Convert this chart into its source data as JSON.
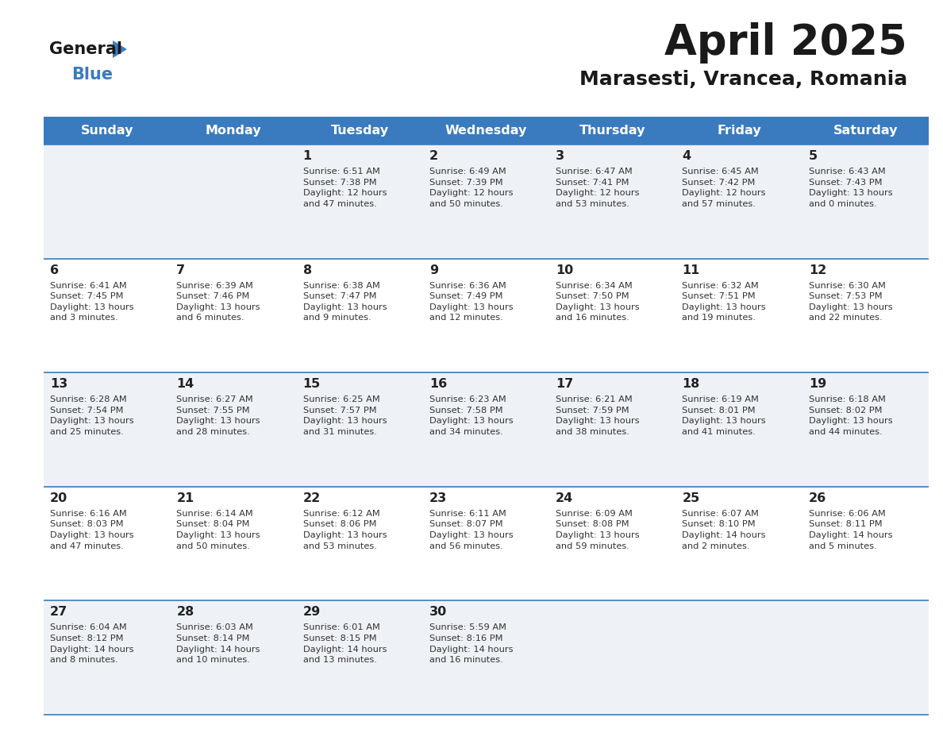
{
  "title": "April 2025",
  "subtitle": "Marasesti, Vrancea, Romania",
  "header_bg": "#3a7bbf",
  "header_text_color": "#ffffff",
  "days_of_week": [
    "Sunday",
    "Monday",
    "Tuesday",
    "Wednesday",
    "Thursday",
    "Friday",
    "Saturday"
  ],
  "bg_color": "#ffffff",
  "row_bg_even": "#eef2f7",
  "row_bg_odd": "#ffffff",
  "cell_border_color": "#3a7bbf",
  "day_number_color": "#222222",
  "text_color": "#333333",
  "logo_general_color": "#1a1a1a",
  "logo_blue_color": "#3a7bbf",
  "logo_triangle_color": "#3a7bbf",
  "title_color": "#1a1a1a",
  "subtitle_color": "#1a1a1a",
  "calendar": [
    [
      {
        "day": null,
        "text": ""
      },
      {
        "day": null,
        "text": ""
      },
      {
        "day": 1,
        "text": "Sunrise: 6:51 AM\nSunset: 7:38 PM\nDaylight: 12 hours\nand 47 minutes."
      },
      {
        "day": 2,
        "text": "Sunrise: 6:49 AM\nSunset: 7:39 PM\nDaylight: 12 hours\nand 50 minutes."
      },
      {
        "day": 3,
        "text": "Sunrise: 6:47 AM\nSunset: 7:41 PM\nDaylight: 12 hours\nand 53 minutes."
      },
      {
        "day": 4,
        "text": "Sunrise: 6:45 AM\nSunset: 7:42 PM\nDaylight: 12 hours\nand 57 minutes."
      },
      {
        "day": 5,
        "text": "Sunrise: 6:43 AM\nSunset: 7:43 PM\nDaylight: 13 hours\nand 0 minutes."
      }
    ],
    [
      {
        "day": 6,
        "text": "Sunrise: 6:41 AM\nSunset: 7:45 PM\nDaylight: 13 hours\nand 3 minutes."
      },
      {
        "day": 7,
        "text": "Sunrise: 6:39 AM\nSunset: 7:46 PM\nDaylight: 13 hours\nand 6 minutes."
      },
      {
        "day": 8,
        "text": "Sunrise: 6:38 AM\nSunset: 7:47 PM\nDaylight: 13 hours\nand 9 minutes."
      },
      {
        "day": 9,
        "text": "Sunrise: 6:36 AM\nSunset: 7:49 PM\nDaylight: 13 hours\nand 12 minutes."
      },
      {
        "day": 10,
        "text": "Sunrise: 6:34 AM\nSunset: 7:50 PM\nDaylight: 13 hours\nand 16 minutes."
      },
      {
        "day": 11,
        "text": "Sunrise: 6:32 AM\nSunset: 7:51 PM\nDaylight: 13 hours\nand 19 minutes."
      },
      {
        "day": 12,
        "text": "Sunrise: 6:30 AM\nSunset: 7:53 PM\nDaylight: 13 hours\nand 22 minutes."
      }
    ],
    [
      {
        "day": 13,
        "text": "Sunrise: 6:28 AM\nSunset: 7:54 PM\nDaylight: 13 hours\nand 25 minutes."
      },
      {
        "day": 14,
        "text": "Sunrise: 6:27 AM\nSunset: 7:55 PM\nDaylight: 13 hours\nand 28 minutes."
      },
      {
        "day": 15,
        "text": "Sunrise: 6:25 AM\nSunset: 7:57 PM\nDaylight: 13 hours\nand 31 minutes."
      },
      {
        "day": 16,
        "text": "Sunrise: 6:23 AM\nSunset: 7:58 PM\nDaylight: 13 hours\nand 34 minutes."
      },
      {
        "day": 17,
        "text": "Sunrise: 6:21 AM\nSunset: 7:59 PM\nDaylight: 13 hours\nand 38 minutes."
      },
      {
        "day": 18,
        "text": "Sunrise: 6:19 AM\nSunset: 8:01 PM\nDaylight: 13 hours\nand 41 minutes."
      },
      {
        "day": 19,
        "text": "Sunrise: 6:18 AM\nSunset: 8:02 PM\nDaylight: 13 hours\nand 44 minutes."
      }
    ],
    [
      {
        "day": 20,
        "text": "Sunrise: 6:16 AM\nSunset: 8:03 PM\nDaylight: 13 hours\nand 47 minutes."
      },
      {
        "day": 21,
        "text": "Sunrise: 6:14 AM\nSunset: 8:04 PM\nDaylight: 13 hours\nand 50 minutes."
      },
      {
        "day": 22,
        "text": "Sunrise: 6:12 AM\nSunset: 8:06 PM\nDaylight: 13 hours\nand 53 minutes."
      },
      {
        "day": 23,
        "text": "Sunrise: 6:11 AM\nSunset: 8:07 PM\nDaylight: 13 hours\nand 56 minutes."
      },
      {
        "day": 24,
        "text": "Sunrise: 6:09 AM\nSunset: 8:08 PM\nDaylight: 13 hours\nand 59 minutes."
      },
      {
        "day": 25,
        "text": "Sunrise: 6:07 AM\nSunset: 8:10 PM\nDaylight: 14 hours\nand 2 minutes."
      },
      {
        "day": 26,
        "text": "Sunrise: 6:06 AM\nSunset: 8:11 PM\nDaylight: 14 hours\nand 5 minutes."
      }
    ],
    [
      {
        "day": 27,
        "text": "Sunrise: 6:04 AM\nSunset: 8:12 PM\nDaylight: 14 hours\nand 8 minutes."
      },
      {
        "day": 28,
        "text": "Sunrise: 6:03 AM\nSunset: 8:14 PM\nDaylight: 14 hours\nand 10 minutes."
      },
      {
        "day": 29,
        "text": "Sunrise: 6:01 AM\nSunset: 8:15 PM\nDaylight: 14 hours\nand 13 minutes."
      },
      {
        "day": 30,
        "text": "Sunrise: 5:59 AM\nSunset: 8:16 PM\nDaylight: 14 hours\nand 16 minutes."
      },
      {
        "day": null,
        "text": ""
      },
      {
        "day": null,
        "text": ""
      },
      {
        "day": null,
        "text": ""
      }
    ]
  ]
}
